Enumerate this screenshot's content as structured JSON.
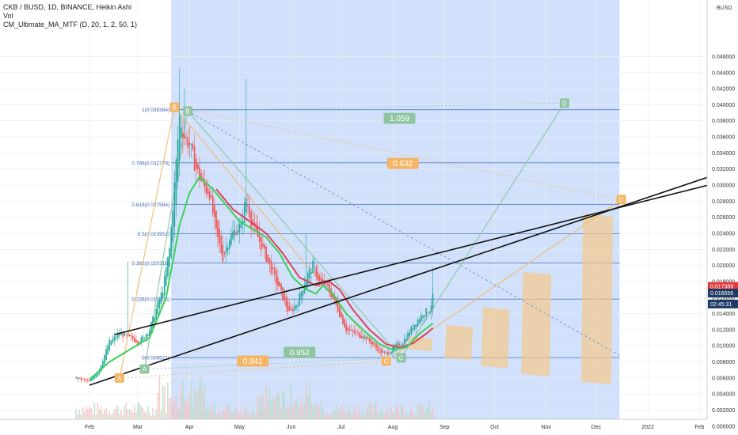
{
  "header": {
    "symbol_line": "CKB / BUSD, 1D, BINANCE, Heikin Ashi",
    "volume_label": "Vol",
    "indicator_label": "CM_Ultimate_MA_MTF (D, 20, 1, 2, 50, 1)",
    "currency": "BUSD"
  },
  "chart_data": {
    "type": "candlestick",
    "chart_style": "Heikin Ashi",
    "y_axis": {
      "ylim": [
        0.0,
        0.048
      ],
      "ticks": [
        "0.000000",
        "0.002000",
        "0.004000",
        "0.006000",
        "0.008000",
        "0.010000",
        "0.012000",
        "0.014000",
        "0.016000",
        "0.018000",
        "0.020000",
        "0.022000",
        "0.024000",
        "0.026000",
        "0.028000",
        "0.030000",
        "0.032000",
        "0.034000",
        "0.036000",
        "0.038000",
        "0.040000",
        "0.042000",
        "0.044000",
        "0.046000"
      ],
      "tick_values": [
        0.0,
        0.002,
        0.004,
        0.006,
        0.008,
        0.01,
        0.012,
        0.014,
        0.016,
        0.018,
        0.02,
        0.022,
        0.024,
        0.026,
        0.028,
        0.03,
        0.032,
        0.034,
        0.036,
        0.038,
        0.04,
        0.042,
        0.044,
        0.046
      ]
    },
    "x_axis": {
      "ticks": [
        "Feb",
        "Mar",
        "Apr",
        "May",
        "Jun",
        "Jul",
        "Aug",
        "Sep",
        "Oct",
        "Nov",
        "Dec",
        "2022",
        "Feb"
      ],
      "tick_days": [
        0,
        29,
        60,
        90,
        121,
        151,
        182,
        213,
        243,
        274,
        304,
        335,
        366
      ]
    },
    "price_badges": [
      {
        "label": "0.017389",
        "value": 0.017389,
        "color": "#e0393e"
      },
      {
        "label": "0.016556",
        "value": 0.016556,
        "color": "#1f3a64"
      },
      {
        "label": "02:45:31",
        "value": 0.0152,
        "color": "#1f3a64"
      }
    ],
    "fib_levels": [
      {
        "label": "1(0.039384)",
        "ratio": 1,
        "value": 0.039384
      },
      {
        "label": "0.786(0.032779)",
        "ratio": 0.786,
        "value": 0.032779
      },
      {
        "label": "0.618(0.027594)",
        "ratio": 0.618,
        "value": 0.027594
      },
      {
        "label": "0.5(0.023952)",
        "ratio": 0.5,
        "value": 0.023952
      },
      {
        "label": "0.382(0.020316)",
        "ratio": 0.382,
        "value": 0.020316
      },
      {
        "label": "0.236(0.015806)",
        "ratio": 0.236,
        "value": 0.015806
      },
      {
        "label": "0(0.008521)",
        "ratio": 0,
        "value": 0.008521
      }
    ],
    "fib_range_days": [
      49,
      318
    ],
    "points": [
      {
        "label": "A",
        "day": 18,
        "value": 0.006,
        "color": "#f5b565"
      },
      {
        "label": "B",
        "day": 51,
        "value": 0.0397,
        "color": "#f5b565"
      },
      {
        "label": "B",
        "day": 59,
        "value": 0.0392,
        "color": "#8fc6a1"
      },
      {
        "label": "A",
        "day": 33,
        "value": 0.0071,
        "color": "#8fc6a1"
      },
      {
        "label": "C",
        "day": 178,
        "value": 0.0081,
        "color": "#f5b565"
      },
      {
        "label": "C",
        "day": 187,
        "value": 0.0085,
        "color": "#8fc6a1"
      },
      {
        "label": "D",
        "day": 285,
        "value": 0.0402,
        "color": "#8fc6a1"
      },
      {
        "label": "D",
        "day": 319,
        "value": 0.0282,
        "color": "#f5b565"
      }
    ],
    "ratios": [
      {
        "label": "1.059",
        "day": 186,
        "value": 0.0383,
        "color": "#8fc6a1"
      },
      {
        "label": "0.632",
        "day": 188,
        "value": 0.0327,
        "color": "#f5b565"
      },
      {
        "label": "0.952",
        "day": 126,
        "value": 0.0092,
        "color": "#8fc6a1"
      },
      {
        "label": "0.941",
        "day": 98,
        "value": 0.0081,
        "color": "#f5b565"
      }
    ],
    "ohlc_anchors": [
      [
        -8,
        0.006
      ],
      [
        0,
        0.0055
      ],
      [
        6,
        0.0072
      ],
      [
        12,
        0.0105
      ],
      [
        18,
        0.0115
      ],
      [
        24,
        0.011
      ],
      [
        30,
        0.0105
      ],
      [
        36,
        0.012
      ],
      [
        40,
        0.0145
      ],
      [
        44,
        0.017
      ],
      [
        48,
        0.022
      ],
      [
        51,
        0.03
      ],
      [
        54,
        0.0385
      ],
      [
        57,
        0.036
      ],
      [
        60,
        0.035
      ],
      [
        64,
        0.032
      ],
      [
        68,
        0.03
      ],
      [
        72,
        0.029
      ],
      [
        76,
        0.024
      ],
      [
        80,
        0.021
      ],
      [
        84,
        0.0235
      ],
      [
        88,
        0.0245
      ],
      [
        91,
        0.025
      ],
      [
        94,
        0.0285
      ],
      [
        97,
        0.0255
      ],
      [
        100,
        0.024
      ],
      [
        104,
        0.022
      ],
      [
        108,
        0.02
      ],
      [
        112,
        0.018
      ],
      [
        116,
        0.016
      ],
      [
        120,
        0.014
      ],
      [
        125,
        0.0155
      ],
      [
        130,
        0.0185
      ],
      [
        134,
        0.02
      ],
      [
        138,
        0.018
      ],
      [
        142,
        0.0175
      ],
      [
        146,
        0.016
      ],
      [
        150,
        0.014
      ],
      [
        154,
        0.012
      ],
      [
        160,
        0.0115
      ],
      [
        166,
        0.011
      ],
      [
        172,
        0.0098
      ],
      [
        176,
        0.009
      ],
      [
        180,
        0.0092
      ],
      [
        184,
        0.01
      ],
      [
        188,
        0.0105
      ],
      [
        192,
        0.0118
      ],
      [
        196,
        0.013
      ],
      [
        200,
        0.014
      ],
      [
        204,
        0.0145
      ],
      [
        206,
        0.016
      ]
    ],
    "ma_green_anchors": [
      [
        0,
        0.0058
      ],
      [
        12,
        0.008
      ],
      [
        24,
        0.0095
      ],
      [
        36,
        0.011
      ],
      [
        46,
        0.016
      ],
      [
        54,
        0.025
      ],
      [
        60,
        0.029
      ],
      [
        66,
        0.031
      ],
      [
        74,
        0.0295
      ],
      [
        82,
        0.0275
      ],
      [
        90,
        0.0255
      ],
      [
        98,
        0.0245
      ],
      [
        106,
        0.0235
      ],
      [
        114,
        0.0215
      ],
      [
        122,
        0.0185
      ],
      [
        130,
        0.017
      ],
      [
        136,
        0.0165
      ],
      [
        140,
        0.0175
      ],
      [
        146,
        0.0165
      ],
      [
        154,
        0.014
      ],
      [
        164,
        0.012
      ],
      [
        174,
        0.0102
      ],
      [
        182,
        0.0095
      ],
      [
        190,
        0.0098
      ],
      [
        198,
        0.0115
      ],
      [
        206,
        0.0128
      ]
    ],
    "ma_red_anchors": [
      [
        76,
        0.0295
      ],
      [
        86,
        0.027
      ],
      [
        96,
        0.0255
      ],
      [
        106,
        0.024
      ],
      [
        116,
        0.0215
      ],
      [
        126,
        0.0185
      ],
      [
        136,
        0.0175
      ],
      [
        144,
        0.018
      ],
      [
        150,
        0.017
      ],
      [
        158,
        0.0145
      ],
      [
        168,
        0.012
      ],
      [
        178,
        0.0102
      ],
      [
        186,
        0.0098
      ],
      [
        194,
        0.0103
      ],
      [
        202,
        0.0115
      ],
      [
        206,
        0.0122
      ]
    ],
    "trendlines": [
      {
        "from": [
          0,
          0.0051
        ],
        "to": [
          400,
          0.033
        ],
        "color": "#111111"
      },
      {
        "from": [
          15,
          0.0114
        ],
        "to": [
          400,
          0.0315
        ],
        "color": "#111111"
      }
    ]
  }
}
